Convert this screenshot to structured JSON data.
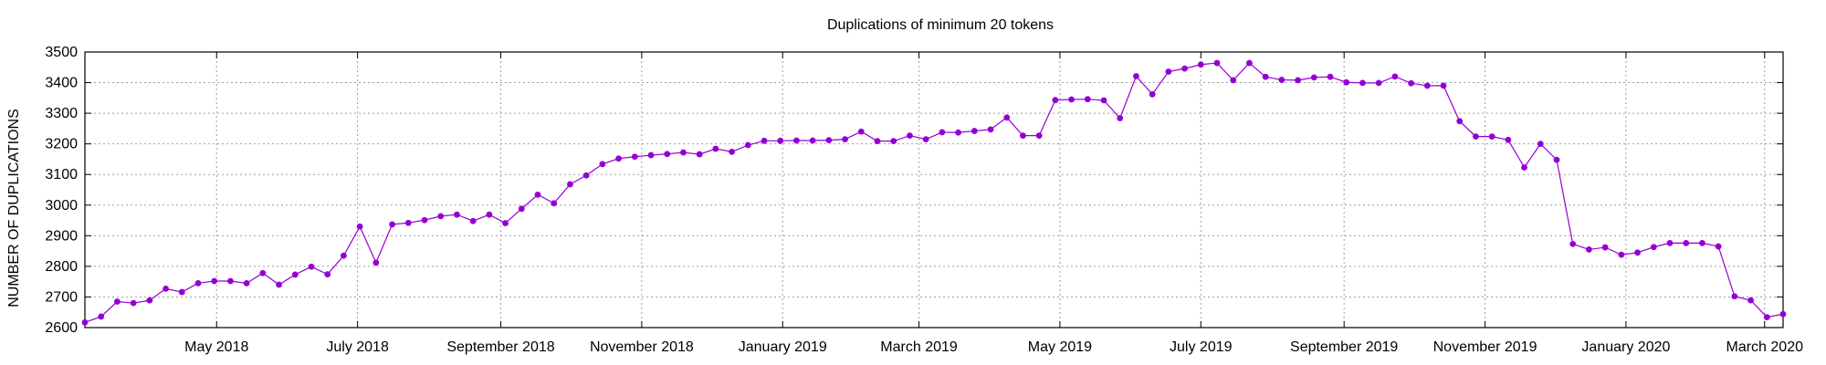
{
  "chart_data": {
    "type": "line",
    "title": "Duplications of minimum 20 tokens",
    "xlabel": "",
    "ylabel": "NUMBER OF DUPLICATIONS",
    "ylim": [
      2600,
      3500
    ],
    "yticks": [
      2600,
      2700,
      2800,
      2900,
      3000,
      3100,
      3200,
      3300,
      3400,
      3500
    ],
    "xlim": [
      "2018-03-05",
      "2020-03-09"
    ],
    "xticks": [
      {
        "date": "2018-05-01",
        "label": "May 2018"
      },
      {
        "date": "2018-07-01",
        "label": "July 2018"
      },
      {
        "date": "2018-09-01",
        "label": "September 2018"
      },
      {
        "date": "2018-11-01",
        "label": "November 2018"
      },
      {
        "date": "2019-01-01",
        "label": "January 2019"
      },
      {
        "date": "2019-03-01",
        "label": "March 2019"
      },
      {
        "date": "2019-05-01",
        "label": "May 2019"
      },
      {
        "date": "2019-07-01",
        "label": "July 2019"
      },
      {
        "date": "2019-09-01",
        "label": "September 2019"
      },
      {
        "date": "2019-11-01",
        "label": "November 2019"
      },
      {
        "date": "2020-01-01",
        "label": "January 2020"
      },
      {
        "date": "2020-03-01",
        "label": "March 2020"
      }
    ],
    "grid": true,
    "series": [
      {
        "color": "#9400d3",
        "points": [
          [
            "2018-03-05",
            2617
          ],
          [
            "2018-03-12",
            2636
          ],
          [
            "2018-03-19",
            2685
          ],
          [
            "2018-03-26",
            2680
          ],
          [
            "2018-04-02",
            2689
          ],
          [
            "2018-04-09",
            2727
          ],
          [
            "2018-04-16",
            2716
          ],
          [
            "2018-04-23",
            2745
          ],
          [
            "2018-04-30",
            2752
          ],
          [
            "2018-05-07",
            2752
          ],
          [
            "2018-05-14",
            2745
          ],
          [
            "2018-05-21",
            2778
          ],
          [
            "2018-05-28",
            2740
          ],
          [
            "2018-06-04",
            2773
          ],
          [
            "2018-06-11",
            2799
          ],
          [
            "2018-06-18",
            2774
          ],
          [
            "2018-06-25",
            2835
          ],
          [
            "2018-07-02",
            2930
          ],
          [
            "2018-07-09",
            2812
          ],
          [
            "2018-07-16",
            2937
          ],
          [
            "2018-07-23",
            2942
          ],
          [
            "2018-07-30",
            2951
          ],
          [
            "2018-08-06",
            2964
          ],
          [
            "2018-08-13",
            2969
          ],
          [
            "2018-08-20",
            2948
          ],
          [
            "2018-08-27",
            2969
          ],
          [
            "2018-09-03",
            2941
          ],
          [
            "2018-09-10",
            2988
          ],
          [
            "2018-09-17",
            3034
          ],
          [
            "2018-09-24",
            3006
          ],
          [
            "2018-10-01",
            3068
          ],
          [
            "2018-10-08",
            3097
          ],
          [
            "2018-10-15",
            3134
          ],
          [
            "2018-10-22",
            3152
          ],
          [
            "2018-10-29",
            3158
          ],
          [
            "2018-11-05",
            3163
          ],
          [
            "2018-11-12",
            3167
          ],
          [
            "2018-11-19",
            3172
          ],
          [
            "2018-11-26",
            3166
          ],
          [
            "2018-12-03",
            3184
          ],
          [
            "2018-12-10",
            3174
          ],
          [
            "2018-12-17",
            3196
          ],
          [
            "2018-12-24",
            3210
          ],
          [
            "2018-12-31",
            3210
          ],
          [
            "2019-01-07",
            3211
          ],
          [
            "2019-01-14",
            3211
          ],
          [
            "2019-01-21",
            3212
          ],
          [
            "2019-01-28",
            3215
          ],
          [
            "2019-02-04",
            3240
          ],
          [
            "2019-02-11",
            3209
          ],
          [
            "2019-02-18",
            3209
          ],
          [
            "2019-02-25",
            3227
          ],
          [
            "2019-03-04",
            3215
          ],
          [
            "2019-03-11",
            3238
          ],
          [
            "2019-03-18",
            3237
          ],
          [
            "2019-03-25",
            3242
          ],
          [
            "2019-04-01",
            3247
          ],
          [
            "2019-04-08",
            3286
          ],
          [
            "2019-04-15",
            3227
          ],
          [
            "2019-04-22",
            3227
          ],
          [
            "2019-04-29",
            3343
          ],
          [
            "2019-05-06",
            3345
          ],
          [
            "2019-05-13",
            3346
          ],
          [
            "2019-05-20",
            3342
          ],
          [
            "2019-05-27",
            3284
          ],
          [
            "2019-06-03",
            3421
          ],
          [
            "2019-06-10",
            3362
          ],
          [
            "2019-06-17",
            3436
          ],
          [
            "2019-06-24",
            3446
          ],
          [
            "2019-07-01",
            3459
          ],
          [
            "2019-07-08",
            3464
          ],
          [
            "2019-07-15",
            3408
          ],
          [
            "2019-07-22",
            3464
          ],
          [
            "2019-07-29",
            3419
          ],
          [
            "2019-08-05",
            3409
          ],
          [
            "2019-08-12",
            3408
          ],
          [
            "2019-08-19",
            3417
          ],
          [
            "2019-08-26",
            3419
          ],
          [
            "2019-09-02",
            3401
          ],
          [
            "2019-09-09",
            3399
          ],
          [
            "2019-09-16",
            3399
          ],
          [
            "2019-09-23",
            3420
          ],
          [
            "2019-09-30",
            3398
          ],
          [
            "2019-10-07",
            3390
          ],
          [
            "2019-10-14",
            3390
          ],
          [
            "2019-10-21",
            3274
          ],
          [
            "2019-10-28",
            3224
          ],
          [
            "2019-11-04",
            3224
          ],
          [
            "2019-11-11",
            3213
          ],
          [
            "2019-11-18",
            3123
          ],
          [
            "2019-11-25",
            3200
          ],
          [
            "2019-12-02",
            3148
          ],
          [
            "2019-12-09",
            2873
          ],
          [
            "2019-12-16",
            2855
          ],
          [
            "2019-12-23",
            2862
          ],
          [
            "2019-12-30",
            2838
          ],
          [
            "2020-01-06",
            2845
          ],
          [
            "2020-01-13",
            2863
          ],
          [
            "2020-01-20",
            2876
          ],
          [
            "2020-01-27",
            2876
          ],
          [
            "2020-02-03",
            2876
          ],
          [
            "2020-02-10",
            2865
          ],
          [
            "2020-02-17",
            2702
          ],
          [
            "2020-02-24",
            2689
          ],
          [
            "2020-03-02",
            2634
          ],
          [
            "2020-03-09",
            2644
          ]
        ]
      }
    ]
  }
}
